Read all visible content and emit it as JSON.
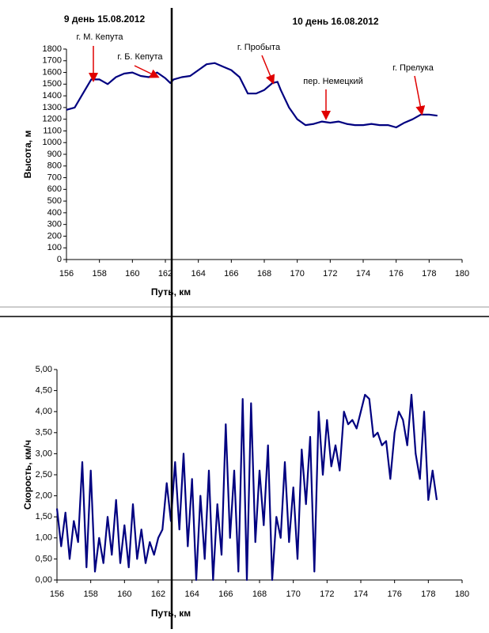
{
  "chart_data": [
    {
      "type": "line",
      "day_labels": [
        "9 день 15.08.2012",
        "10 день  16.08.2012"
      ],
      "ylabel": "Высота, м",
      "xlabel": "Путь, км",
      "annotations": [
        "г. М. Кепута",
        "г. Б. Кепута",
        "г. Пробыта",
        "пер. Немецкий",
        "г. Прелука"
      ],
      "x": [
        156.0,
        156.5,
        157.0,
        157.5,
        158.0,
        158.5,
        159.0,
        159.5,
        160.0,
        160.5,
        161.0,
        161.5,
        162.0,
        162.3,
        162.5,
        163.0,
        163.5,
        164.0,
        164.5,
        165.0,
        165.5,
        166.0,
        166.5,
        167.0,
        167.5,
        168.0,
        168.5,
        168.8,
        169.0,
        169.5,
        170.0,
        170.5,
        171.0,
        171.5,
        172.0,
        172.5,
        173.0,
        173.5,
        174.0,
        174.5,
        175.0,
        175.5,
        176.0,
        176.5,
        177.0,
        177.5,
        178.0,
        178.5
      ],
      "series": [
        {
          "color": "#000080",
          "values": [
            1280,
            1300,
            1420,
            1540,
            1540,
            1500,
            1560,
            1590,
            1600,
            1570,
            1560,
            1600,
            1550,
            1510,
            1540,
            1560,
            1570,
            1620,
            1670,
            1680,
            1650,
            1620,
            1560,
            1420,
            1420,
            1450,
            1510,
            1520,
            1450,
            1300,
            1200,
            1150,
            1160,
            1180,
            1170,
            1180,
            1160,
            1150,
            1150,
            1160,
            1150,
            1150,
            1130,
            1170,
            1200,
            1240,
            1240,
            1230
          ]
        }
      ],
      "xlim": [
        156,
        180
      ],
      "xticks": [
        156,
        158,
        160,
        162,
        164,
        166,
        168,
        170,
        172,
        174,
        176,
        178,
        180
      ],
      "ylim": [
        0,
        1800
      ],
      "yticks": [
        0,
        100,
        200,
        300,
        400,
        500,
        600,
        700,
        800,
        900,
        1000,
        1100,
        1200,
        1300,
        1400,
        1500,
        1600,
        1700,
        1800
      ]
    },
    {
      "type": "line",
      "ylabel": "Скорость, км/ч",
      "xlabel": "Путь, км",
      "x": [
        156.0,
        156.25,
        156.5,
        156.75,
        157.0,
        157.25,
        157.5,
        157.75,
        158.0,
        158.25,
        158.5,
        158.75,
        159.0,
        159.25,
        159.5,
        159.75,
        160.0,
        160.25,
        160.5,
        160.75,
        161.0,
        161.25,
        161.5,
        161.75,
        162.0,
        162.25,
        162.5,
        162.75,
        163.0,
        163.25,
        163.5,
        163.75,
        164.0,
        164.25,
        164.5,
        164.75,
        165.0,
        165.25,
        165.5,
        165.75,
        166.0,
        166.25,
        166.5,
        166.75,
        167.0,
        167.25,
        167.5,
        167.75,
        168.0,
        168.25,
        168.5,
        168.75,
        169.0,
        169.25,
        169.5,
        169.75,
        170.0,
        170.25,
        170.5,
        170.75,
        171.0,
        171.25,
        171.5,
        171.75,
        172.0,
        172.25,
        172.5,
        172.75,
        173.0,
        173.25,
        173.5,
        173.75,
        174.0,
        174.25,
        174.5,
        174.75,
        175.0,
        175.25,
        175.5,
        175.75,
        176.0,
        176.25,
        176.5,
        176.75,
        177.0,
        177.25,
        177.5,
        177.75,
        178.0,
        178.25,
        178.5
      ],
      "series": [
        {
          "color": "#000080",
          "values": [
            1.7,
            0.8,
            1.6,
            0.5,
            1.4,
            0.9,
            2.8,
            0.3,
            2.6,
            0.2,
            1.0,
            0.4,
            1.5,
            0.6,
            1.9,
            0.4,
            1.3,
            0.3,
            1.8,
            0.5,
            1.2,
            0.4,
            0.9,
            0.6,
            1.0,
            1.2,
            2.3,
            1.4,
            2.8,
            1.2,
            3.0,
            0.8,
            2.4,
            0.0,
            2.0,
            0.5,
            2.6,
            0.0,
            1.8,
            0.6,
            3.7,
            1.0,
            2.6,
            0.2,
            4.3,
            0.0,
            4.2,
            0.9,
            2.6,
            1.3,
            3.2,
            0.0,
            1.5,
            1.0,
            2.8,
            0.9,
            2.2,
            0.5,
            3.1,
            1.8,
            3.4,
            0.2,
            4.0,
            2.5,
            3.8,
            2.7,
            3.2,
            2.6,
            4.0,
            3.7,
            3.8,
            3.6,
            4.0,
            4.4,
            4.3,
            3.4,
            3.5,
            3.2,
            3.3,
            2.4,
            3.5,
            4.0,
            3.8,
            3.2,
            4.4,
            3.0,
            2.4,
            4.0,
            1.9,
            2.6,
            1.9
          ]
        }
      ],
      "xlim": [
        156,
        180
      ],
      "xticks": [
        156,
        158,
        160,
        162,
        164,
        166,
        168,
        170,
        172,
        174,
        176,
        178,
        180
      ],
      "ylim": [
        0,
        5
      ],
      "yticks": [
        {
          "value": 0,
          "label": "0,00"
        },
        {
          "value": 0.5,
          "label": "0,50"
        },
        {
          "value": 1,
          "label": "1,00"
        },
        {
          "value": 1.5,
          "label": "1,50"
        },
        {
          "value": 2,
          "label": "2,00"
        },
        {
          "value": 2.5,
          "label": "2,50"
        },
        {
          "value": 3,
          "label": "3,00"
        },
        {
          "value": 3.5,
          "label": "3,50"
        },
        {
          "value": 4,
          "label": "4,00"
        },
        {
          "value": 4.5,
          "label": "4,50"
        },
        {
          "value": 5,
          "label": "5,00"
        }
      ]
    }
  ]
}
